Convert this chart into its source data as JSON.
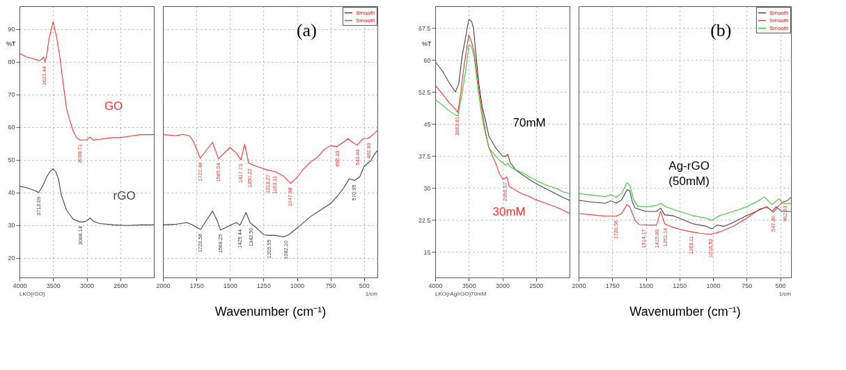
{
  "chart_data": [
    {
      "type": "line",
      "ylabel": "%T",
      "xlim": [
        4000,
        2000
      ],
      "ylim": [
        14,
        97
      ],
      "xticks": [
        4000,
        3500,
        3000,
        2500
      ],
      "yticks": [
        20,
        30,
        40,
        50,
        60,
        70,
        80,
        90
      ],
      "grid": true,
      "line_style": "solid",
      "series": [
        {
          "color": "#404040",
          "x": [
            4000,
            3900,
            3800,
            3713,
            3650,
            3600,
            3550,
            3500,
            3460,
            3420,
            3380,
            3300,
            3250,
            3200,
            3100,
            3050,
            3000,
            2950,
            2900,
            2850,
            2800,
            2600,
            2400,
            2200,
            2000
          ],
          "values": [
            41.9,
            41.5,
            40.8,
            40,
            42.2,
            44.6,
            46.3,
            47.3,
            46.3,
            44.2,
            39.4,
            34.6,
            33.2,
            31.8,
            31,
            31,
            31.3,
            32.2,
            31.2,
            30.8,
            30.5,
            30.1,
            29.9,
            30.1,
            30.1
          ]
        },
        {
          "color": "#ff3030",
          "x": [
            4000,
            3900,
            3800,
            3700,
            3640,
            3622,
            3600,
            3560,
            3500,
            3450,
            3400,
            3350,
            3300,
            3250,
            3200,
            3150,
            3100,
            3000,
            2950,
            2900,
            2850,
            2800,
            2700,
            2600,
            2500,
            2400,
            2300,
            2200,
            2000
          ],
          "values": [
            82.6,
            81.5,
            81,
            80.3,
            81.5,
            79.9,
            81.5,
            87,
            92.3,
            87.8,
            81.6,
            73.4,
            65.7,
            62,
            58.8,
            56.8,
            56.1,
            56.1,
            57,
            56,
            56.3,
            56.3,
            56.6,
            56.8,
            56.8,
            57.1,
            57.4,
            57.7,
            57.7
          ]
        }
      ],
      "annotations": [
        {
          "text": "3622.44",
          "x": 3622,
          "y": 79.9
        },
        {
          "text": "3099.71",
          "x": 3100,
          "y": 56.1
        },
        {
          "text": "3713.09",
          "x": 3713,
          "y": 40
        },
        {
          "text": "3088.14",
          "x": 3088,
          "y": 31
        },
        "GO",
        "rGO",
        "LKO(rGO)"
      ]
    },
    {
      "type": "line",
      "title": "(a)",
      "xlabel": "Wavenumber (cm⁻¹)",
      "xlim": [
        2000,
        400
      ],
      "ylim": [
        14,
        97
      ],
      "xticks": [
        2000,
        1750,
        1500,
        1250,
        1000,
        750,
        500
      ],
      "yticks": [
        20,
        30,
        40,
        50,
        60,
        70,
        80,
        90
      ],
      "tick_labels": "x",
      "grid": true,
      "legend": "top right",
      "line_style": "solid",
      "series": [
        {
          "name": "Smooth",
          "color": "#404040",
          "x": [
            2000,
            1900,
            1820,
            1780,
            1720,
            1680,
            1630,
            1600,
            1570,
            1500,
            1450,
            1425,
            1380,
            1350,
            1300,
            1250,
            1205,
            1163,
            1100,
            1060,
            1000,
            900,
            800,
            750,
            700,
            650,
            610,
            570,
            530,
            500,
            450,
            420,
            400
          ],
          "values": [
            30.1,
            30.3,
            30.8,
            30.1,
            28.7,
            31.2,
            34.3,
            31.9,
            28.5,
            29.9,
            30.8,
            30,
            33.9,
            30.8,
            29.1,
            27.1,
            26.9,
            26.9,
            26.4,
            27.1,
            29.1,
            32.6,
            35.3,
            36.6,
            38.8,
            41.5,
            44.2,
            43.7,
            44.9,
            48,
            49.7,
            51.8,
            52.8
          ]
        },
        {
          "name": "Smooth",
          "color": "#ff3030",
          "x": [
            2000,
            1900,
            1850,
            1800,
            1770,
            1722,
            1630,
            1586,
            1500,
            1450,
            1418,
            1390,
            1360,
            1300,
            1250,
            1213,
            1163,
            1100,
            1047,
            1000,
            950,
            900,
            850,
            800,
            750,
            700,
            650,
            620,
            590,
            550,
            520,
            500,
            470,
            430,
            400
          ],
          "values": [
            57.7,
            57.4,
            57.8,
            57.3,
            55.5,
            50.5,
            55.4,
            50.3,
            53.8,
            52,
            50,
            54.8,
            49,
            48,
            47.3,
            46.8,
            46.4,
            45,
            42.8,
            44.6,
            47.3,
            49.3,
            50.7,
            53.1,
            54.3,
            54.1,
            55.5,
            56.5,
            55.5,
            54.5,
            56,
            56.5,
            56.5,
            57.8,
            59
          ]
        }
      ],
      "annotations": [
        {
          "text": "1722.48",
          "x": 1722,
          "y": 50.5
        },
        {
          "text": "1585.54",
          "x": 1586,
          "y": 50.3
        },
        {
          "text": "1417.73",
          "x": 1418,
          "y": 50
        },
        {
          "text": "1350.22",
          "x": 1350,
          "y": 48.6
        },
        {
          "text": "1213.27",
          "x": 1213,
          "y": 46.8
        },
        {
          "text": "1163.11",
          "x": 1163,
          "y": 46.4
        },
        {
          "text": "1047.38",
          "x": 1047,
          "y": 42.8
        },
        {
          "text": "696.33",
          "x": 696,
          "y": 54.1
        },
        {
          "text": "543.84",
          "x": 544,
          "y": 54.5
        },
        {
          "text": "462.93",
          "x": 463,
          "y": 56.5
        },
        {
          "text": "1720.56",
          "x": 1721,
          "y": 28.7
        },
        {
          "text": "1568.25",
          "x": 1568,
          "y": 28.5
        },
        {
          "text": "1425.44",
          "x": 1425,
          "y": 30
        },
        {
          "text": "1342.50",
          "x": 1342,
          "y": 30.5
        },
        {
          "text": "1205.55",
          "x": 1206,
          "y": 26.9
        },
        {
          "text": "1082.10",
          "x": 1082,
          "y": 26.6
        },
        {
          "text": "570.95",
          "x": 571,
          "y": 43.7
        },
        "1/cm"
      ]
    },
    {
      "type": "line",
      "ylabel": "%T",
      "xlim": [
        4000,
        2000
      ],
      "ylim": [
        9,
        72.6
      ],
      "xticks": [
        4000,
        3500,
        3000,
        2500
      ],
      "yticks": [
        15,
        22.5,
        30,
        37.5,
        45,
        52.5,
        60,
        67.5
      ],
      "grid": true,
      "line_style": "solid",
      "series": [
        {
          "color": "#404040",
          "x": [
            4000,
            3900,
            3800,
            3700,
            3650,
            3600,
            3550,
            3500,
            3460,
            3430,
            3400,
            3350,
            3300,
            3250,
            3200,
            3100,
            3000,
            2950,
            2920,
            2880,
            2850,
            2800,
            2700,
            2600,
            2500,
            2400,
            2300,
            2200,
            2100,
            2000
          ],
          "values": [
            59.6,
            57.6,
            54.9,
            52.5,
            54.4,
            60.8,
            65.1,
            69.5,
            69.1,
            67.5,
            62.4,
            54.4,
            49,
            45.8,
            42.1,
            39.4,
            37.5,
            37.4,
            37.9,
            35.8,
            35.3,
            34.2,
            33.1,
            32,
            31,
            30.2,
            29.4,
            28.6,
            27.8,
            27.1
          ]
        },
        {
          "color": "#ff3030",
          "x": [
            4000,
            3900,
            3800,
            3700,
            3664,
            3620,
            3570,
            3500,
            3460,
            3420,
            3350,
            3300,
            3250,
            3200,
            3100,
            3050,
            3000,
            2957,
            2930,
            2900,
            2800,
            2700,
            2600,
            2500,
            2400,
            2300,
            2200,
            2100,
            2000
          ],
          "values": [
            54.1,
            52.2,
            50.1,
            48.5,
            47.7,
            52.2,
            58.7,
            65.9,
            64.3,
            61.9,
            53.3,
            48,
            43.1,
            39.4,
            35.8,
            33.6,
            32.1,
            32.3,
            32.6,
            30.4,
            29.4,
            28.6,
            28,
            27.2,
            26.7,
            26.1,
            25.5,
            24.8,
            24
          ]
        },
        {
          "color": "#33cc33",
          "x": [
            4000,
            3900,
            3800,
            3700,
            3660,
            3600,
            3550,
            3500,
            3460,
            3420,
            3350,
            3300,
            3250,
            3200,
            3050,
            2950,
            2920,
            2880,
            2800,
            2700,
            2600,
            2500,
            2400,
            2300,
            2200,
            2100,
            2000
          ],
          "values": [
            50.7,
            49.5,
            48.2,
            47.1,
            46.9,
            52.2,
            57,
            63.5,
            63.2,
            60.8,
            51.7,
            46.3,
            42.6,
            39.4,
            36.6,
            35.3,
            35.8,
            35,
            34.2,
            33.6,
            32.6,
            31.8,
            31,
            30.4,
            29.9,
            29.1,
            28.7
          ]
        }
      ],
      "annotations": [
        {
          "text": "3663.81",
          "x": 3664,
          "y": 47.7
        },
        {
          "text": "2956.97",
          "x": 2957,
          "y": 32.3
        },
        "70mM",
        "30mM",
        "LKO(rAg/rGO)70mM"
      ]
    },
    {
      "type": "line",
      "title": "(b)",
      "xlabel": "Wavenumber (cm⁻¹)",
      "xlim": [
        2000,
        420
      ],
      "ylim": [
        9,
        72.6
      ],
      "xticks": [
        2000,
        1750,
        1500,
        1250,
        1000,
        750,
        500
      ],
      "yticks": [
        15,
        22.5,
        30,
        37.5,
        45,
        52.5,
        60,
        67.5
      ],
      "tick_labels": "x",
      "grid": true,
      "legend": "top right",
      "line_style": "solid",
      "series": [
        {
          "name": "Smooth",
          "color": "#404040",
          "x": [
            2000,
            1900,
            1800,
            1760,
            1720,
            1680,
            1640,
            1620,
            1600,
            1580,
            1500,
            1420,
            1390,
            1360,
            1300,
            1250,
            1150,
            1050,
            1010,
            970,
            920,
            850,
            750,
            600,
            560,
            530,
            490,
            420
          ],
          "values": [
            27.1,
            26.7,
            26.4,
            27,
            26.4,
            27.2,
            29.6,
            29.4,
            26.7,
            25.3,
            24.5,
            24.5,
            25.3,
            23.7,
            23.5,
            22.9,
            21.6,
            21,
            20.4,
            21.3,
            21,
            21.9,
            23.5,
            25.6,
            24.5,
            25.6,
            24.5,
            24.5
          ]
        },
        {
          "name": "Smooth",
          "color": "#ff3030",
          "x": [
            2000,
            1900,
            1800,
            1720,
            1680,
            1640,
            1620,
            1580,
            1550,
            1500,
            1420,
            1390,
            1360,
            1300,
            1250,
            1160,
            1100,
            1017,
            950,
            850,
            750,
            650,
            600,
            550,
            510,
            480,
            450,
            420
          ],
          "values": [
            24,
            23.7,
            23.4,
            23.4,
            24,
            26.1,
            25.6,
            22.4,
            21.4,
            21.3,
            21.3,
            24.5,
            21.6,
            20.8,
            20.3,
            19.7,
            19.4,
            19.1,
            19.7,
            21,
            22.9,
            25.1,
            25.5,
            24.3,
            25.9,
            26.7,
            27,
            27.8
          ]
        },
        {
          "name": "Smooth",
          "color": "#33cc33",
          "x": [
            2000,
            1900,
            1800,
            1760,
            1720,
            1680,
            1640,
            1620,
            1590,
            1560,
            1500,
            1420,
            1390,
            1350,
            1250,
            1150,
            1050,
            1010,
            950,
            850,
            750,
            650,
            620,
            560,
            510,
            480,
            420
          ],
          "values": [
            28.7,
            28.3,
            28,
            28.4,
            27.8,
            28.8,
            31.2,
            30.7,
            27.2,
            25.7,
            25.6,
            25.9,
            26.4,
            25.6,
            24.5,
            23.5,
            22.9,
            22.4,
            23.5,
            24.5,
            25.6,
            27.2,
            27.9,
            26.1,
            27.5,
            26.4,
            26.4
          ]
        }
      ],
      "annotations": [
        {
          "text": "1720.56",
          "x": 1721,
          "y": 23.4
        },
        {
          "text": "1514.17",
          "x": 1514,
          "y": 21.3
        },
        {
          "text": "1415.80",
          "x": 1416,
          "y": 21.3
        },
        {
          "text": "1352.14",
          "x": 1352,
          "y": 21.6
        },
        {
          "text": "1163.11",
          "x": 1163,
          "y": 19.7
        },
        {
          "text": "1016.52",
          "x": 1017,
          "y": 19.1
        },
        {
          "text": "547.80",
          "x": 548,
          "y": 24.5
        },
        {
          "text": "462.93",
          "x": 463,
          "y": 26.8
        },
        "Ag-rGO\n(50mM)",
        "1/cm"
      ]
    }
  ]
}
